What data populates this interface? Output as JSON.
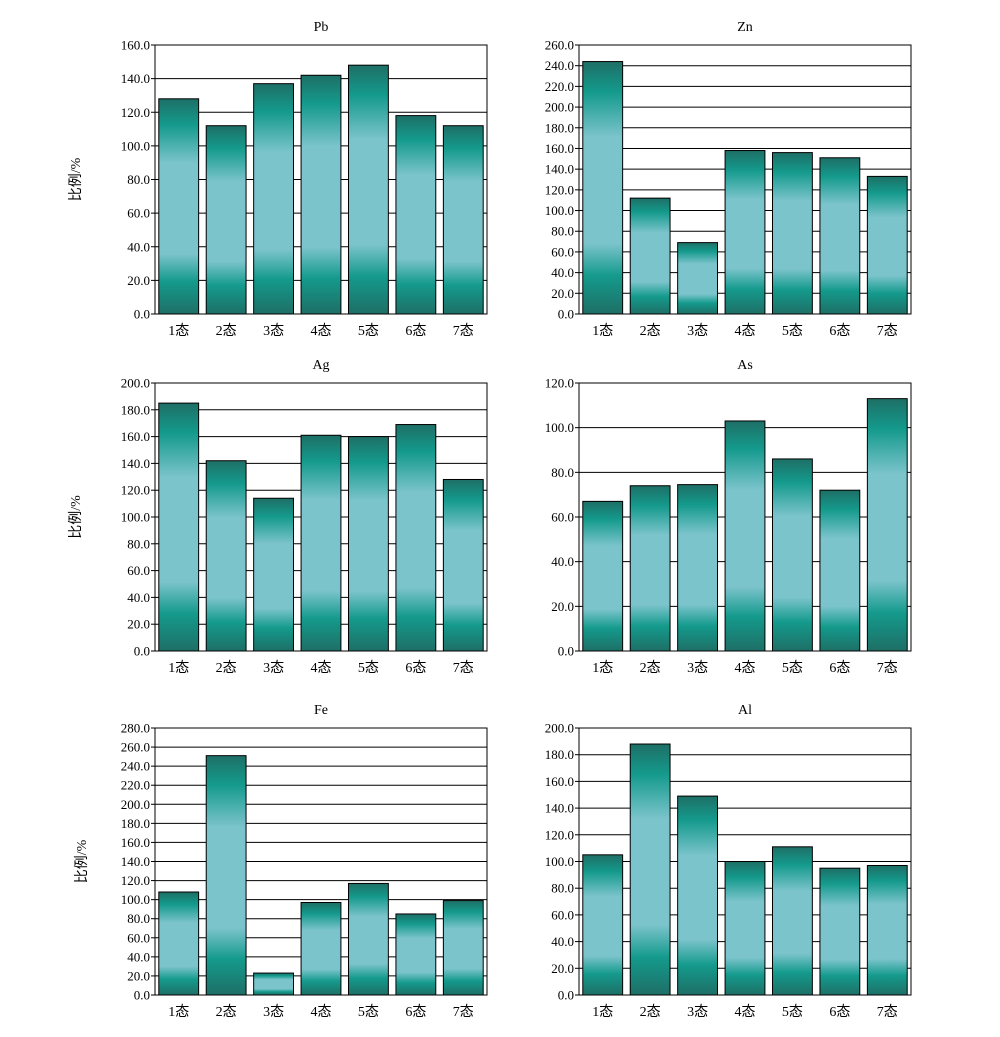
{
  "chart_data": [
    {
      "type": "bar",
      "title": "Pb",
      "ylabel": "比例/%",
      "categories": [
        "1态",
        "2态",
        "3态",
        "4态",
        "5态",
        "6态",
        "7态"
      ],
      "values": [
        128,
        112,
        137,
        142,
        148,
        118,
        112
      ],
      "ylim": [
        0,
        160
      ],
      "yticks": [
        0,
        20,
        40,
        60,
        80,
        100,
        120,
        140,
        160
      ],
      "grid": true
    },
    {
      "type": "bar",
      "title": "Zn",
      "ylabel": "",
      "categories": [
        "1态",
        "2态",
        "3态",
        "4态",
        "5态",
        "6态",
        "7态"
      ],
      "values": [
        244,
        112,
        69,
        158,
        156,
        151,
        133
      ],
      "ylim": [
        0,
        260
      ],
      "yticks": [
        0,
        20,
        40,
        60,
        80,
        100,
        120,
        140,
        160,
        180,
        200,
        220,
        240,
        260
      ],
      "grid": true
    },
    {
      "type": "bar",
      "title": "Ag",
      "ylabel": "比例/%",
      "categories": [
        "1态",
        "2态",
        "3态",
        "4态",
        "5态",
        "6态",
        "7态"
      ],
      "values": [
        185,
        142,
        114,
        161,
        160,
        169,
        128
      ],
      "ylim": [
        0,
        200
      ],
      "yticks": [
        0,
        20,
        40,
        60,
        80,
        100,
        120,
        140,
        160,
        180,
        200
      ],
      "grid": true
    },
    {
      "type": "bar",
      "title": "As",
      "ylabel": "",
      "categories": [
        "1态",
        "2态",
        "3态",
        "4态",
        "5态",
        "6态",
        "7态"
      ],
      "values": [
        67,
        74,
        74.5,
        103,
        86,
        72,
        113
      ],
      "ylim": [
        0,
        120
      ],
      "yticks": [
        0,
        20,
        40,
        60,
        80,
        100,
        120
      ],
      "grid": true
    },
    {
      "type": "bar",
      "title": "Fe",
      "ylabel": "比例/%",
      "categories": [
        "1态",
        "2态",
        "3态",
        "4态",
        "5态",
        "6态",
        "7态"
      ],
      "values": [
        108,
        251,
        23,
        97,
        117,
        85,
        99
      ],
      "ylim": [
        0,
        280
      ],
      "yticks": [
        0,
        20,
        40,
        60,
        80,
        100,
        120,
        140,
        160,
        180,
        200,
        220,
        240,
        260,
        280
      ],
      "grid": true
    },
    {
      "type": "bar",
      "title": "Al",
      "ylabel": "",
      "categories": [
        "1态",
        "2态",
        "3态",
        "4态",
        "5态",
        "6态",
        "7态"
      ],
      "values": [
        105,
        188,
        149,
        100,
        111,
        95,
        97
      ],
      "ylim": [
        0,
        200
      ],
      "yticks": [
        0,
        20,
        40,
        60,
        80,
        100,
        120,
        140,
        160,
        180,
        200
      ],
      "grid": true
    }
  ],
  "colors": {
    "bar_dark": "#1e6f66",
    "bar_mid": "#149a8c",
    "bar_light": "#7cc4cc",
    "grid": "#000000"
  }
}
